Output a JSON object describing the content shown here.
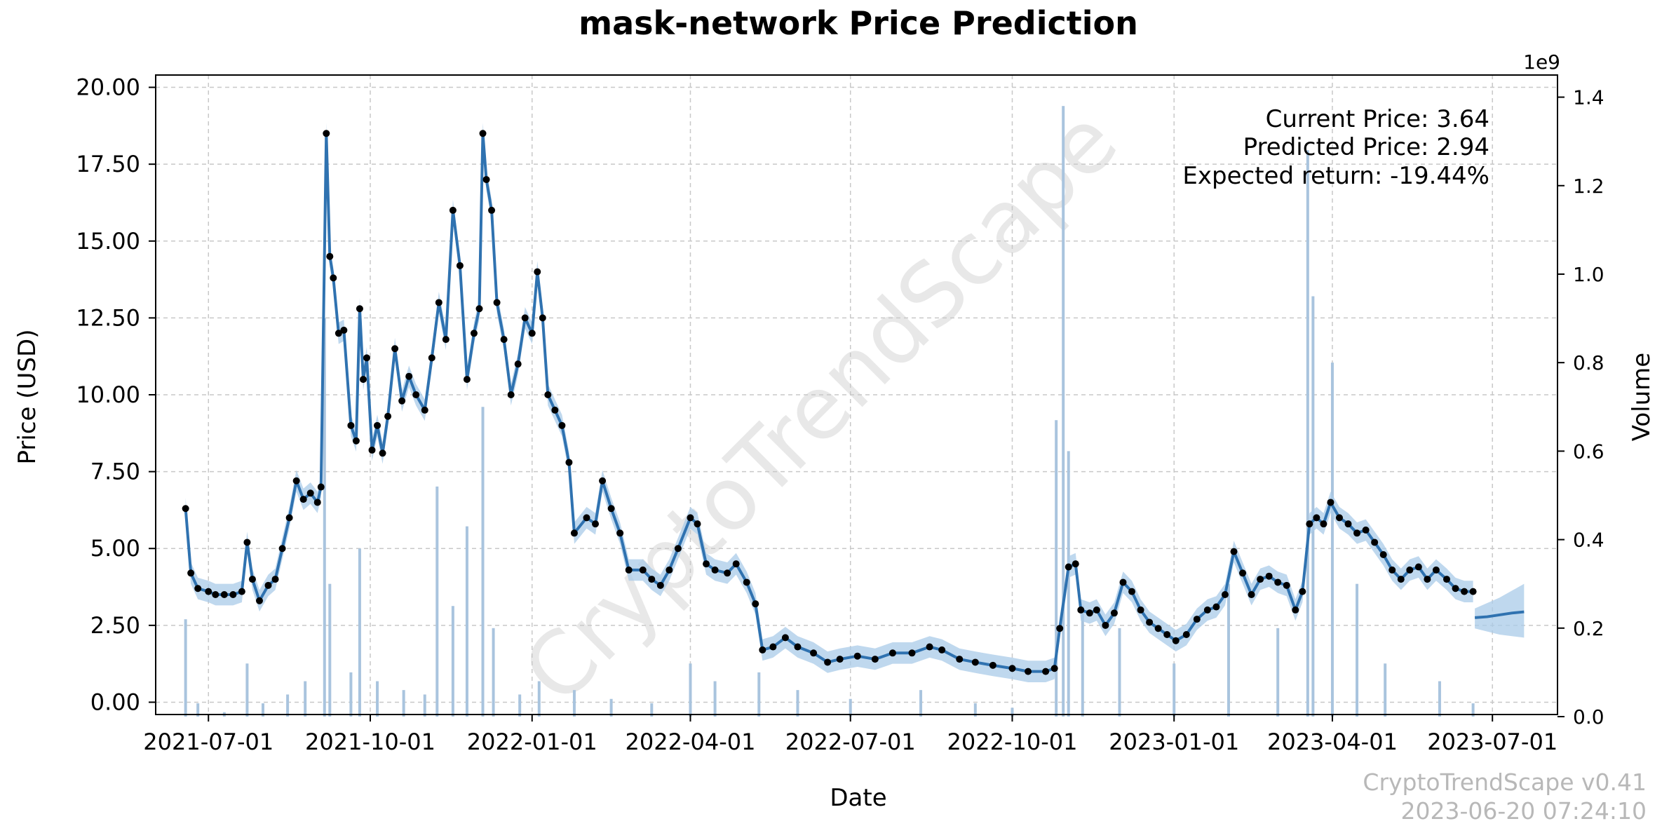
{
  "chart_data": {
    "type": "line",
    "title": "mask-network Price Prediction",
    "xlabel": "Date",
    "ylabel": "Price (USD)",
    "y2label": "Volume",
    "y2_multiplier": "1e9",
    "xlim": [
      "2021-06-01",
      "2023-08-07"
    ],
    "ylim": [
      -0.4,
      20.4
    ],
    "y2lim": [
      0,
      1.45
    ],
    "x_ticks": [
      "2021-07-01",
      "2021-10-01",
      "2022-01-01",
      "2022-04-01",
      "2022-07-01",
      "2022-10-01",
      "2023-01-01",
      "2023-04-01",
      "2023-07-01"
    ],
    "y_ticks": [
      "0.00",
      "2.50",
      "5.00",
      "7.50",
      "10.00",
      "12.50",
      "15.00",
      "17.50",
      "20.00"
    ],
    "y2_ticks": [
      "0.0",
      "0.2",
      "0.4",
      "0.6",
      "0.8",
      "1.0",
      "1.2",
      "1.4"
    ],
    "grid": true,
    "series": [
      {
        "role": "price-fit",
        "color": "#2f72b0",
        "points": [
          [
            "2021-06-18",
            6.3
          ],
          [
            "2021-06-21",
            4.2
          ],
          [
            "2021-06-25",
            3.7
          ],
          [
            "2021-07-01",
            3.6
          ],
          [
            "2021-07-05",
            3.5
          ],
          [
            "2021-07-10",
            3.5
          ],
          [
            "2021-07-15",
            3.5
          ],
          [
            "2021-07-20",
            3.6
          ],
          [
            "2021-07-23",
            5.2
          ],
          [
            "2021-07-26",
            4.0
          ],
          [
            "2021-07-30",
            3.3
          ],
          [
            "2021-08-04",
            3.8
          ],
          [
            "2021-08-08",
            4.0
          ],
          [
            "2021-08-12",
            5.0
          ],
          [
            "2021-08-16",
            6.0
          ],
          [
            "2021-08-20",
            7.2
          ],
          [
            "2021-08-24",
            6.6
          ],
          [
            "2021-08-28",
            6.8
          ],
          [
            "2021-09-01",
            6.5
          ],
          [
            "2021-09-03",
            7.0
          ],
          [
            "2021-09-06",
            18.5
          ],
          [
            "2021-09-08",
            14.5
          ],
          [
            "2021-09-10",
            13.8
          ],
          [
            "2021-09-13",
            12.0
          ],
          [
            "2021-09-16",
            12.1
          ],
          [
            "2021-09-20",
            9.0
          ],
          [
            "2021-09-23",
            8.5
          ],
          [
            "2021-09-25",
            12.8
          ],
          [
            "2021-09-27",
            10.5
          ],
          [
            "2021-09-29",
            11.2
          ],
          [
            "2021-10-02",
            8.2
          ],
          [
            "2021-10-05",
            9.0
          ],
          [
            "2021-10-08",
            8.1
          ],
          [
            "2021-10-11",
            9.3
          ],
          [
            "2021-10-15",
            11.5
          ],
          [
            "2021-10-19",
            9.8
          ],
          [
            "2021-10-23",
            10.6
          ],
          [
            "2021-10-27",
            10.0
          ],
          [
            "2021-11-01",
            9.5
          ],
          [
            "2021-11-05",
            11.2
          ],
          [
            "2021-11-09",
            13.0
          ],
          [
            "2021-11-13",
            11.8
          ],
          [
            "2021-11-17",
            16.0
          ],
          [
            "2021-11-21",
            14.2
          ],
          [
            "2021-11-25",
            10.5
          ],
          [
            "2021-11-29",
            12.0
          ],
          [
            "2021-12-02",
            12.8
          ],
          [
            "2021-12-04",
            18.5
          ],
          [
            "2021-12-06",
            17.0
          ],
          [
            "2021-12-09",
            16.0
          ],
          [
            "2021-12-12",
            13.0
          ],
          [
            "2021-12-16",
            11.8
          ],
          [
            "2021-12-20",
            10.0
          ],
          [
            "2021-12-24",
            11.0
          ],
          [
            "2021-12-28",
            12.5
          ],
          [
            "2022-01-01",
            12.0
          ],
          [
            "2022-01-04",
            14.0
          ],
          [
            "2022-01-07",
            12.5
          ],
          [
            "2022-01-10",
            10.0
          ],
          [
            "2022-01-14",
            9.5
          ],
          [
            "2022-01-18",
            9.0
          ],
          [
            "2022-01-22",
            7.8
          ],
          [
            "2022-01-25",
            5.5
          ],
          [
            "2022-02-01",
            6.0
          ],
          [
            "2022-02-06",
            5.8
          ],
          [
            "2022-02-10",
            7.2
          ],
          [
            "2022-02-15",
            6.3
          ],
          [
            "2022-02-20",
            5.5
          ],
          [
            "2022-02-25",
            4.3
          ],
          [
            "2022-03-05",
            4.3
          ],
          [
            "2022-03-10",
            4.0
          ],
          [
            "2022-03-15",
            3.8
          ],
          [
            "2022-03-20",
            4.3
          ],
          [
            "2022-03-25",
            5.0
          ],
          [
            "2022-04-01",
            6.0
          ],
          [
            "2022-04-05",
            5.8
          ],
          [
            "2022-04-10",
            4.5
          ],
          [
            "2022-04-15",
            4.3
          ],
          [
            "2022-04-22",
            4.2
          ],
          [
            "2022-04-27",
            4.5
          ],
          [
            "2022-05-03",
            3.9
          ],
          [
            "2022-05-08",
            3.2
          ],
          [
            "2022-05-12",
            1.7
          ],
          [
            "2022-05-18",
            1.8
          ],
          [
            "2022-05-25",
            2.1
          ],
          [
            "2022-06-01",
            1.8
          ],
          [
            "2022-06-10",
            1.6
          ],
          [
            "2022-06-18",
            1.3
          ],
          [
            "2022-06-25",
            1.4
          ],
          [
            "2022-07-05",
            1.5
          ],
          [
            "2022-07-15",
            1.4
          ],
          [
            "2022-07-25",
            1.6
          ],
          [
            "2022-08-05",
            1.6
          ],
          [
            "2022-08-15",
            1.8
          ],
          [
            "2022-08-22",
            1.7
          ],
          [
            "2022-09-01",
            1.4
          ],
          [
            "2022-09-10",
            1.3
          ],
          [
            "2022-09-20",
            1.2
          ],
          [
            "2022-10-01",
            1.1
          ],
          [
            "2022-10-10",
            1.0
          ],
          [
            "2022-10-20",
            1.0
          ],
          [
            "2022-10-25",
            1.1
          ],
          [
            "2022-10-28",
            2.4
          ],
          [
            "2022-11-02",
            4.4
          ],
          [
            "2022-11-06",
            4.5
          ],
          [
            "2022-11-09",
            3.0
          ],
          [
            "2022-11-14",
            2.9
          ],
          [
            "2022-11-18",
            3.0
          ],
          [
            "2022-11-23",
            2.5
          ],
          [
            "2022-11-28",
            2.9
          ],
          [
            "2022-12-03",
            3.9
          ],
          [
            "2022-12-08",
            3.6
          ],
          [
            "2022-12-13",
            3.0
          ],
          [
            "2022-12-18",
            2.6
          ],
          [
            "2022-12-23",
            2.4
          ],
          [
            "2022-12-28",
            2.2
          ],
          [
            "2023-01-02",
            2.0
          ],
          [
            "2023-01-08",
            2.2
          ],
          [
            "2023-01-14",
            2.7
          ],
          [
            "2023-01-20",
            3.0
          ],
          [
            "2023-01-25",
            3.1
          ],
          [
            "2023-01-30",
            3.5
          ],
          [
            "2023-02-04",
            4.9
          ],
          [
            "2023-02-09",
            4.2
          ],
          [
            "2023-02-14",
            3.5
          ],
          [
            "2023-02-19",
            4.0
          ],
          [
            "2023-02-24",
            4.1
          ],
          [
            "2023-03-01",
            3.9
          ],
          [
            "2023-03-06",
            3.8
          ],
          [
            "2023-03-11",
            3.0
          ],
          [
            "2023-03-15",
            3.6
          ],
          [
            "2023-03-19",
            5.8
          ],
          [
            "2023-03-23",
            6.0
          ],
          [
            "2023-03-27",
            5.8
          ],
          [
            "2023-03-31",
            6.5
          ],
          [
            "2023-04-05",
            6.0
          ],
          [
            "2023-04-10",
            5.8
          ],
          [
            "2023-04-15",
            5.5
          ],
          [
            "2023-04-20",
            5.6
          ],
          [
            "2023-04-25",
            5.2
          ],
          [
            "2023-04-30",
            4.8
          ],
          [
            "2023-05-05",
            4.3
          ],
          [
            "2023-05-10",
            4.0
          ],
          [
            "2023-05-15",
            4.3
          ],
          [
            "2023-05-20",
            4.4
          ],
          [
            "2023-05-25",
            4.0
          ],
          [
            "2023-05-30",
            4.3
          ],
          [
            "2023-06-05",
            4.0
          ],
          [
            "2023-06-10",
            3.7
          ],
          [
            "2023-06-15",
            3.6
          ],
          [
            "2023-06-20",
            3.6
          ]
        ]
      },
      {
        "role": "forecast",
        "color": "#2f72b0",
        "points": [
          [
            "2023-06-21",
            2.75
          ],
          [
            "2023-06-28",
            2.78
          ],
          [
            "2023-07-05",
            2.84
          ],
          [
            "2023-07-12",
            2.9
          ],
          [
            "2023-07-19",
            2.94
          ]
        ],
        "band": [
          [
            "2023-06-21",
            2.4,
            3.05
          ],
          [
            "2023-07-05",
            2.2,
            3.4
          ],
          [
            "2023-07-19",
            2.1,
            3.85
          ]
        ]
      },
      {
        "role": "volume",
        "color": "#a9c4de",
        "unit": "1e9",
        "bars": [
          [
            "2021-06-18",
            0.22
          ],
          [
            "2021-06-25",
            0.03
          ],
          [
            "2021-07-10",
            0.01
          ],
          [
            "2021-07-23",
            0.12
          ],
          [
            "2021-08-01",
            0.03
          ],
          [
            "2021-08-15",
            0.05
          ],
          [
            "2021-08-25",
            0.08
          ],
          [
            "2021-09-05",
            0.9
          ],
          [
            "2021-09-08",
            0.3
          ],
          [
            "2021-09-20",
            0.1
          ],
          [
            "2021-09-25",
            0.38
          ],
          [
            "2021-10-05",
            0.08
          ],
          [
            "2021-10-20",
            0.06
          ],
          [
            "2021-11-01",
            0.05
          ],
          [
            "2021-11-08",
            0.52
          ],
          [
            "2021-11-17",
            0.25
          ],
          [
            "2021-11-25",
            0.43
          ],
          [
            "2021-12-04",
            0.7
          ],
          [
            "2021-12-10",
            0.2
          ],
          [
            "2021-12-25",
            0.05
          ],
          [
            "2022-01-05",
            0.08
          ],
          [
            "2022-01-25",
            0.06
          ],
          [
            "2022-02-15",
            0.04
          ],
          [
            "2022-03-10",
            0.03
          ],
          [
            "2022-04-01",
            0.12
          ],
          [
            "2022-04-15",
            0.08
          ],
          [
            "2022-05-10",
            0.1
          ],
          [
            "2022-06-01",
            0.06
          ],
          [
            "2022-07-01",
            0.04
          ],
          [
            "2022-08-10",
            0.06
          ],
          [
            "2022-09-10",
            0.03
          ],
          [
            "2022-10-01",
            0.02
          ],
          [
            "2022-10-26",
            0.67
          ],
          [
            "2022-10-30",
            1.38
          ],
          [
            "2022-11-02",
            0.6
          ],
          [
            "2022-11-10",
            0.25
          ],
          [
            "2022-12-01",
            0.2
          ],
          [
            "2023-01-01",
            0.12
          ],
          [
            "2023-02-01",
            0.3
          ],
          [
            "2023-03-01",
            0.2
          ],
          [
            "2023-03-18",
            1.28
          ],
          [
            "2023-03-21",
            0.95
          ],
          [
            "2023-04-01",
            0.8
          ],
          [
            "2023-04-15",
            0.3
          ],
          [
            "2023-05-01",
            0.12
          ],
          [
            "2023-06-01",
            0.08
          ],
          [
            "2023-06-20",
            0.03
          ]
        ]
      }
    ],
    "annotations": [
      "Current Price: 3.64",
      "Predicted Price: 2.94",
      "Expected return: -19.44%"
    ],
    "watermark": "CryptoTrendScape",
    "version": "CryptoTrendScape v0.41",
    "timestamp": "2023-06-20 07:24:10"
  }
}
